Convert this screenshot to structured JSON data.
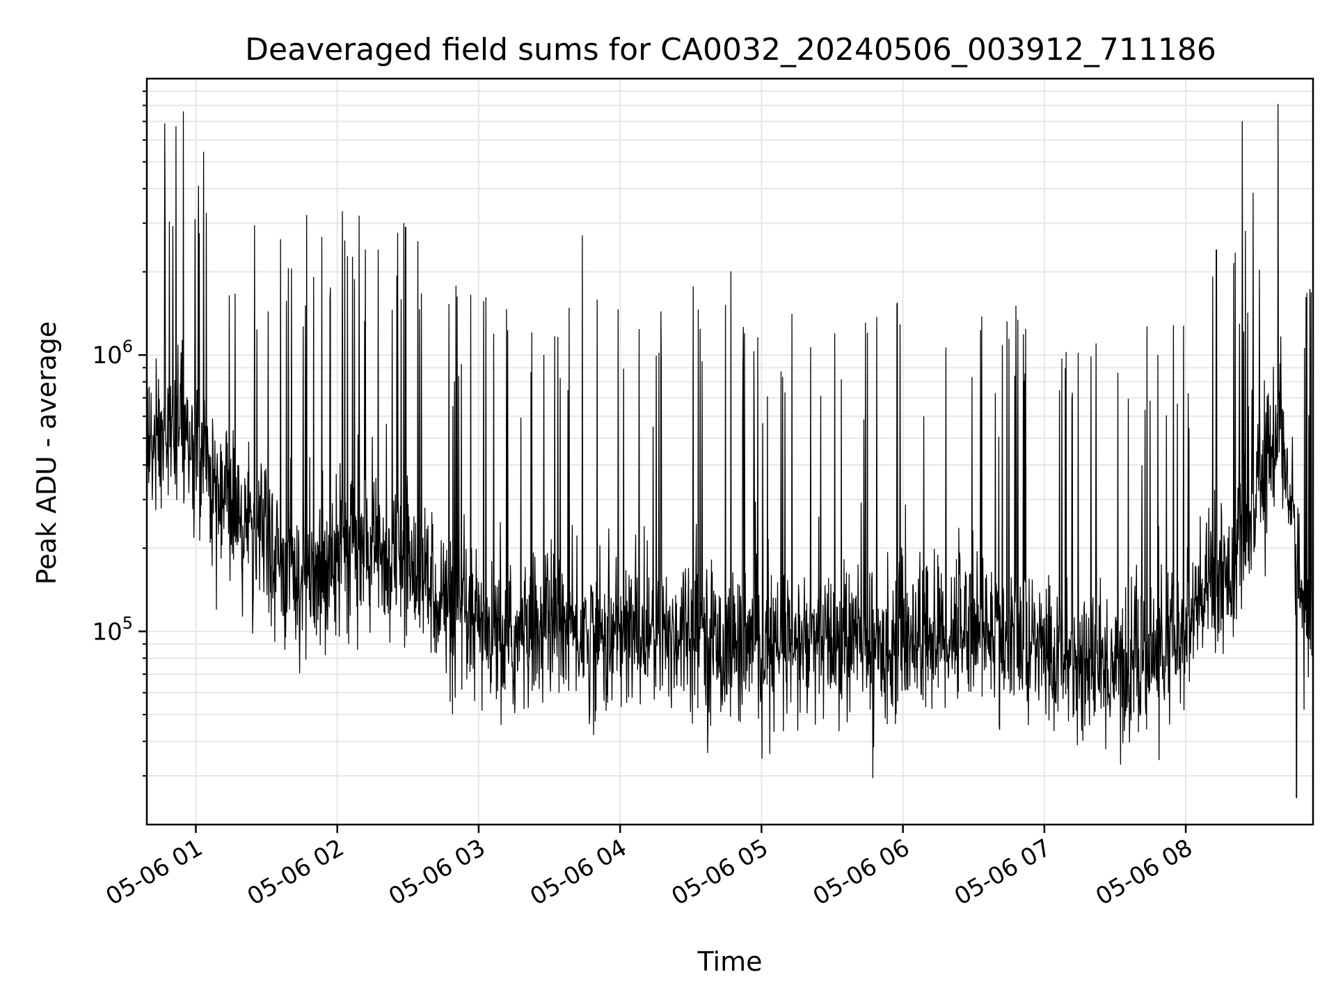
{
  "chart_data": {
    "type": "line",
    "title": "Deaveraged field sums for CA0032_20240506_003912_711186",
    "xlabel": "Time",
    "ylabel": "Peak ADU - average",
    "x_range": [
      "2024-05-06T00:39:12",
      "2024-05-06T08:54:00"
    ],
    "x_ticks": [
      {
        "t": "2024-05-06T01:00:00",
        "label": "05-06 01"
      },
      {
        "t": "2024-05-06T02:00:00",
        "label": "05-06 02"
      },
      {
        "t": "2024-05-06T03:00:00",
        "label": "05-06 03"
      },
      {
        "t": "2024-05-06T04:00:00",
        "label": "05-06 04"
      },
      {
        "t": "2024-05-06T05:00:00",
        "label": "05-06 05"
      },
      {
        "t": "2024-05-06T06:00:00",
        "label": "05-06 06"
      },
      {
        "t": "2024-05-06T07:00:00",
        "label": "05-06 07"
      },
      {
        "t": "2024-05-06T08:00:00",
        "label": "05-06 08"
      }
    ],
    "y_scale": "log",
    "ylim": [
      20000,
      10000000
    ],
    "y_ticks": [
      {
        "value": 100000,
        "base": "10",
        "exp": "5"
      },
      {
        "value": 1000000,
        "base": "10",
        "exp": "6"
      }
    ],
    "grid": true,
    "line_color": "#000000",
    "series": [
      {
        "x": [
          "2024-05-06T00:40:00",
          "2024-05-06T00:50:00",
          "2024-05-06T01:00:00",
          "2024-05-06T01:10:00",
          "2024-05-06T01:20:00",
          "2024-05-06T01:30:00",
          "2024-05-06T01:40:00",
          "2024-05-06T01:50:00",
          "2024-05-06T02:00:00",
          "2024-05-06T02:10:00",
          "2024-05-06T02:20:00",
          "2024-05-06T02:30:00",
          "2024-05-06T02:40:00",
          "2024-05-06T02:50:00",
          "2024-05-06T03:00:00",
          "2024-05-06T03:10:00",
          "2024-05-06T03:20:00",
          "2024-05-06T03:30:00",
          "2024-05-06T03:40:00",
          "2024-05-06T03:50:00",
          "2024-05-06T04:00:00",
          "2024-05-06T04:10:00",
          "2024-05-06T04:20:00",
          "2024-05-06T04:30:00",
          "2024-05-06T04:40:00",
          "2024-05-06T04:50:00",
          "2024-05-06T05:00:00",
          "2024-05-06T05:10:00",
          "2024-05-06T05:20:00",
          "2024-05-06T05:30:00",
          "2024-05-06T05:40:00",
          "2024-05-06T05:50:00",
          "2024-05-06T06:00:00",
          "2024-05-06T06:10:00",
          "2024-05-06T06:20:00",
          "2024-05-06T06:30:00",
          "2024-05-06T06:40:00",
          "2024-05-06T06:50:00",
          "2024-05-06T07:00:00",
          "2024-05-06T07:10:00",
          "2024-05-06T07:20:00",
          "2024-05-06T07:30:00",
          "2024-05-06T07:40:00",
          "2024-05-06T07:50:00",
          "2024-05-06T08:00:00",
          "2024-05-06T08:10:00",
          "2024-05-06T08:20:00",
          "2024-05-06T08:30:00",
          "2024-05-06T08:40:00",
          "2024-05-06T08:50:00"
        ],
        "median": [
          450000,
          550000,
          420000,
          330000,
          250000,
          200000,
          180000,
          140000,
          220000,
          200000,
          190000,
          180000,
          150000,
          110000,
          100000,
          90000,
          95000,
          110000,
          100000,
          95000,
          95000,
          100000,
          95000,
          110000,
          90000,
          90000,
          85000,
          85000,
          90000,
          90000,
          95000,
          85000,
          100000,
          95000,
          100000,
          110000,
          95000,
          90000,
          85000,
          80000,
          75000,
          75000,
          75000,
          85000,
          95000,
          150000,
          170000,
          300000,
          600000,
          110000
        ],
        "peaks": [
          {
            "t": "2024-05-06T00:47:00",
            "value": 3100000
          },
          {
            "t": "2024-05-06T01:47:00",
            "value": 3200000
          },
          {
            "t": "2024-05-06T02:29:00",
            "value": 2900000
          },
          {
            "t": "2024-05-06T03:44:00",
            "value": 2700000
          },
          {
            "t": "2024-05-06T04:47:00",
            "value": 2000000
          },
          {
            "t": "2024-05-06T08:13:00",
            "value": 2400000
          },
          {
            "t": "2024-05-06T08:24:00",
            "value": 7000000
          }
        ],
        "minimum": {
          "t": "2024-05-06T08:47:00",
          "value": 25000
        }
      }
    ]
  }
}
